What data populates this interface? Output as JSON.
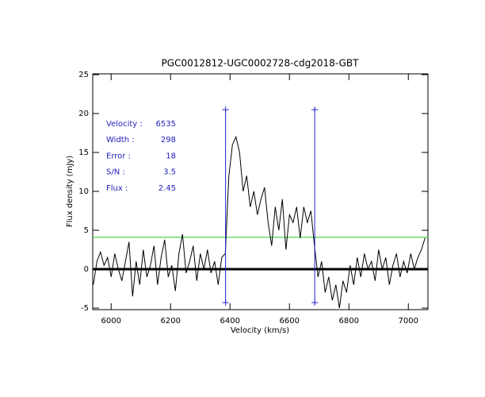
{
  "chart_data": {
    "type": "line",
    "title": "PGC0012812-UGC0002728-cdg2018-GBT",
    "x_label": "Velocity (km/s)",
    "y_label": "Flux density (mJy)",
    "xlim": [
      5938,
      7066
    ],
    "ylim": [
      -5.2,
      25.1
    ],
    "xticks": [
      6000,
      6200,
      6400,
      6600,
      6800,
      7000
    ],
    "yticks": [
      -5,
      0,
      5,
      10,
      15,
      20,
      25
    ],
    "x": [
      5940,
      5952,
      5964,
      5976,
      5988,
      6000,
      6012,
      6024,
      6036,
      6048,
      6060,
      6072,
      6084,
      6096,
      6108,
      6120,
      6132,
      6144,
      6156,
      6168,
      6180,
      6192,
      6204,
      6216,
      6228,
      6240,
      6252,
      6264,
      6276,
      6288,
      6300,
      6312,
      6324,
      6336,
      6348,
      6360,
      6372,
      6384,
      6396,
      6408,
      6420,
      6432,
      6444,
      6456,
      6468,
      6480,
      6492,
      6504,
      6516,
      6528,
      6540,
      6552,
      6564,
      6576,
      6588,
      6600,
      6612,
      6624,
      6636,
      6648,
      6660,
      6672,
      6684,
      6696,
      6708,
      6720,
      6732,
      6744,
      6756,
      6768,
      6780,
      6792,
      6804,
      6816,
      6828,
      6840,
      6852,
      6864,
      6876,
      6888,
      6900,
      6912,
      6924,
      6936,
      6948,
      6960,
      6972,
      6984,
      6996,
      7008,
      7020,
      7032,
      7044,
      7056
    ],
    "series": [
      {
        "color": "#000000",
        "values": [
          -2,
          1,
          2.2,
          0.5,
          1.5,
          -1,
          2,
          0,
          -1.5,
          1,
          3.5,
          -3.5,
          1,
          -2,
          2.5,
          -1,
          0.5,
          3,
          -2,
          1.5,
          3.8,
          -1,
          0.5,
          -2.8,
          2,
          4.5,
          -0.5,
          1,
          3,
          -1.5,
          2,
          0,
          2.5,
          -0.5,
          1,
          -2,
          1.5,
          2,
          12,
          16,
          17,
          15,
          10,
          12,
          8,
          10,
          7,
          9,
          10.5,
          6,
          3,
          8,
          5,
          9,
          2.5,
          7,
          6,
          8,
          4,
          8,
          6,
          7.5,
          3,
          -1,
          1,
          -3,
          -1,
          -4,
          -2,
          -5,
          -1.5,
          -3,
          0.5,
          -2,
          1.5,
          -1,
          2,
          0,
          1,
          -1.5,
          2.5,
          0,
          1.5,
          -2,
          0.5,
          2,
          -1,
          1,
          -0.5,
          2,
          0,
          1.5,
          2.5,
          4
        ]
      }
    ],
    "baseline": {
      "value": 0,
      "color": "#000000"
    },
    "threshold": {
      "value": 4.1,
      "color": "#22cc22"
    },
    "markers": {
      "x": [
        6385,
        6685
      ],
      "ylim": [
        -4.3,
        20.5
      ],
      "color": "#2222cc"
    },
    "stats": [
      {
        "label": "Velocity :",
        "value": 6535
      },
      {
        "label": "Width :",
        "value": 298
      },
      {
        "label": "Error :",
        "value": 18
      },
      {
        "label": "S/N :",
        "value": 3.5
      },
      {
        "label": "Flux :",
        "value": 2.45
      }
    ]
  }
}
